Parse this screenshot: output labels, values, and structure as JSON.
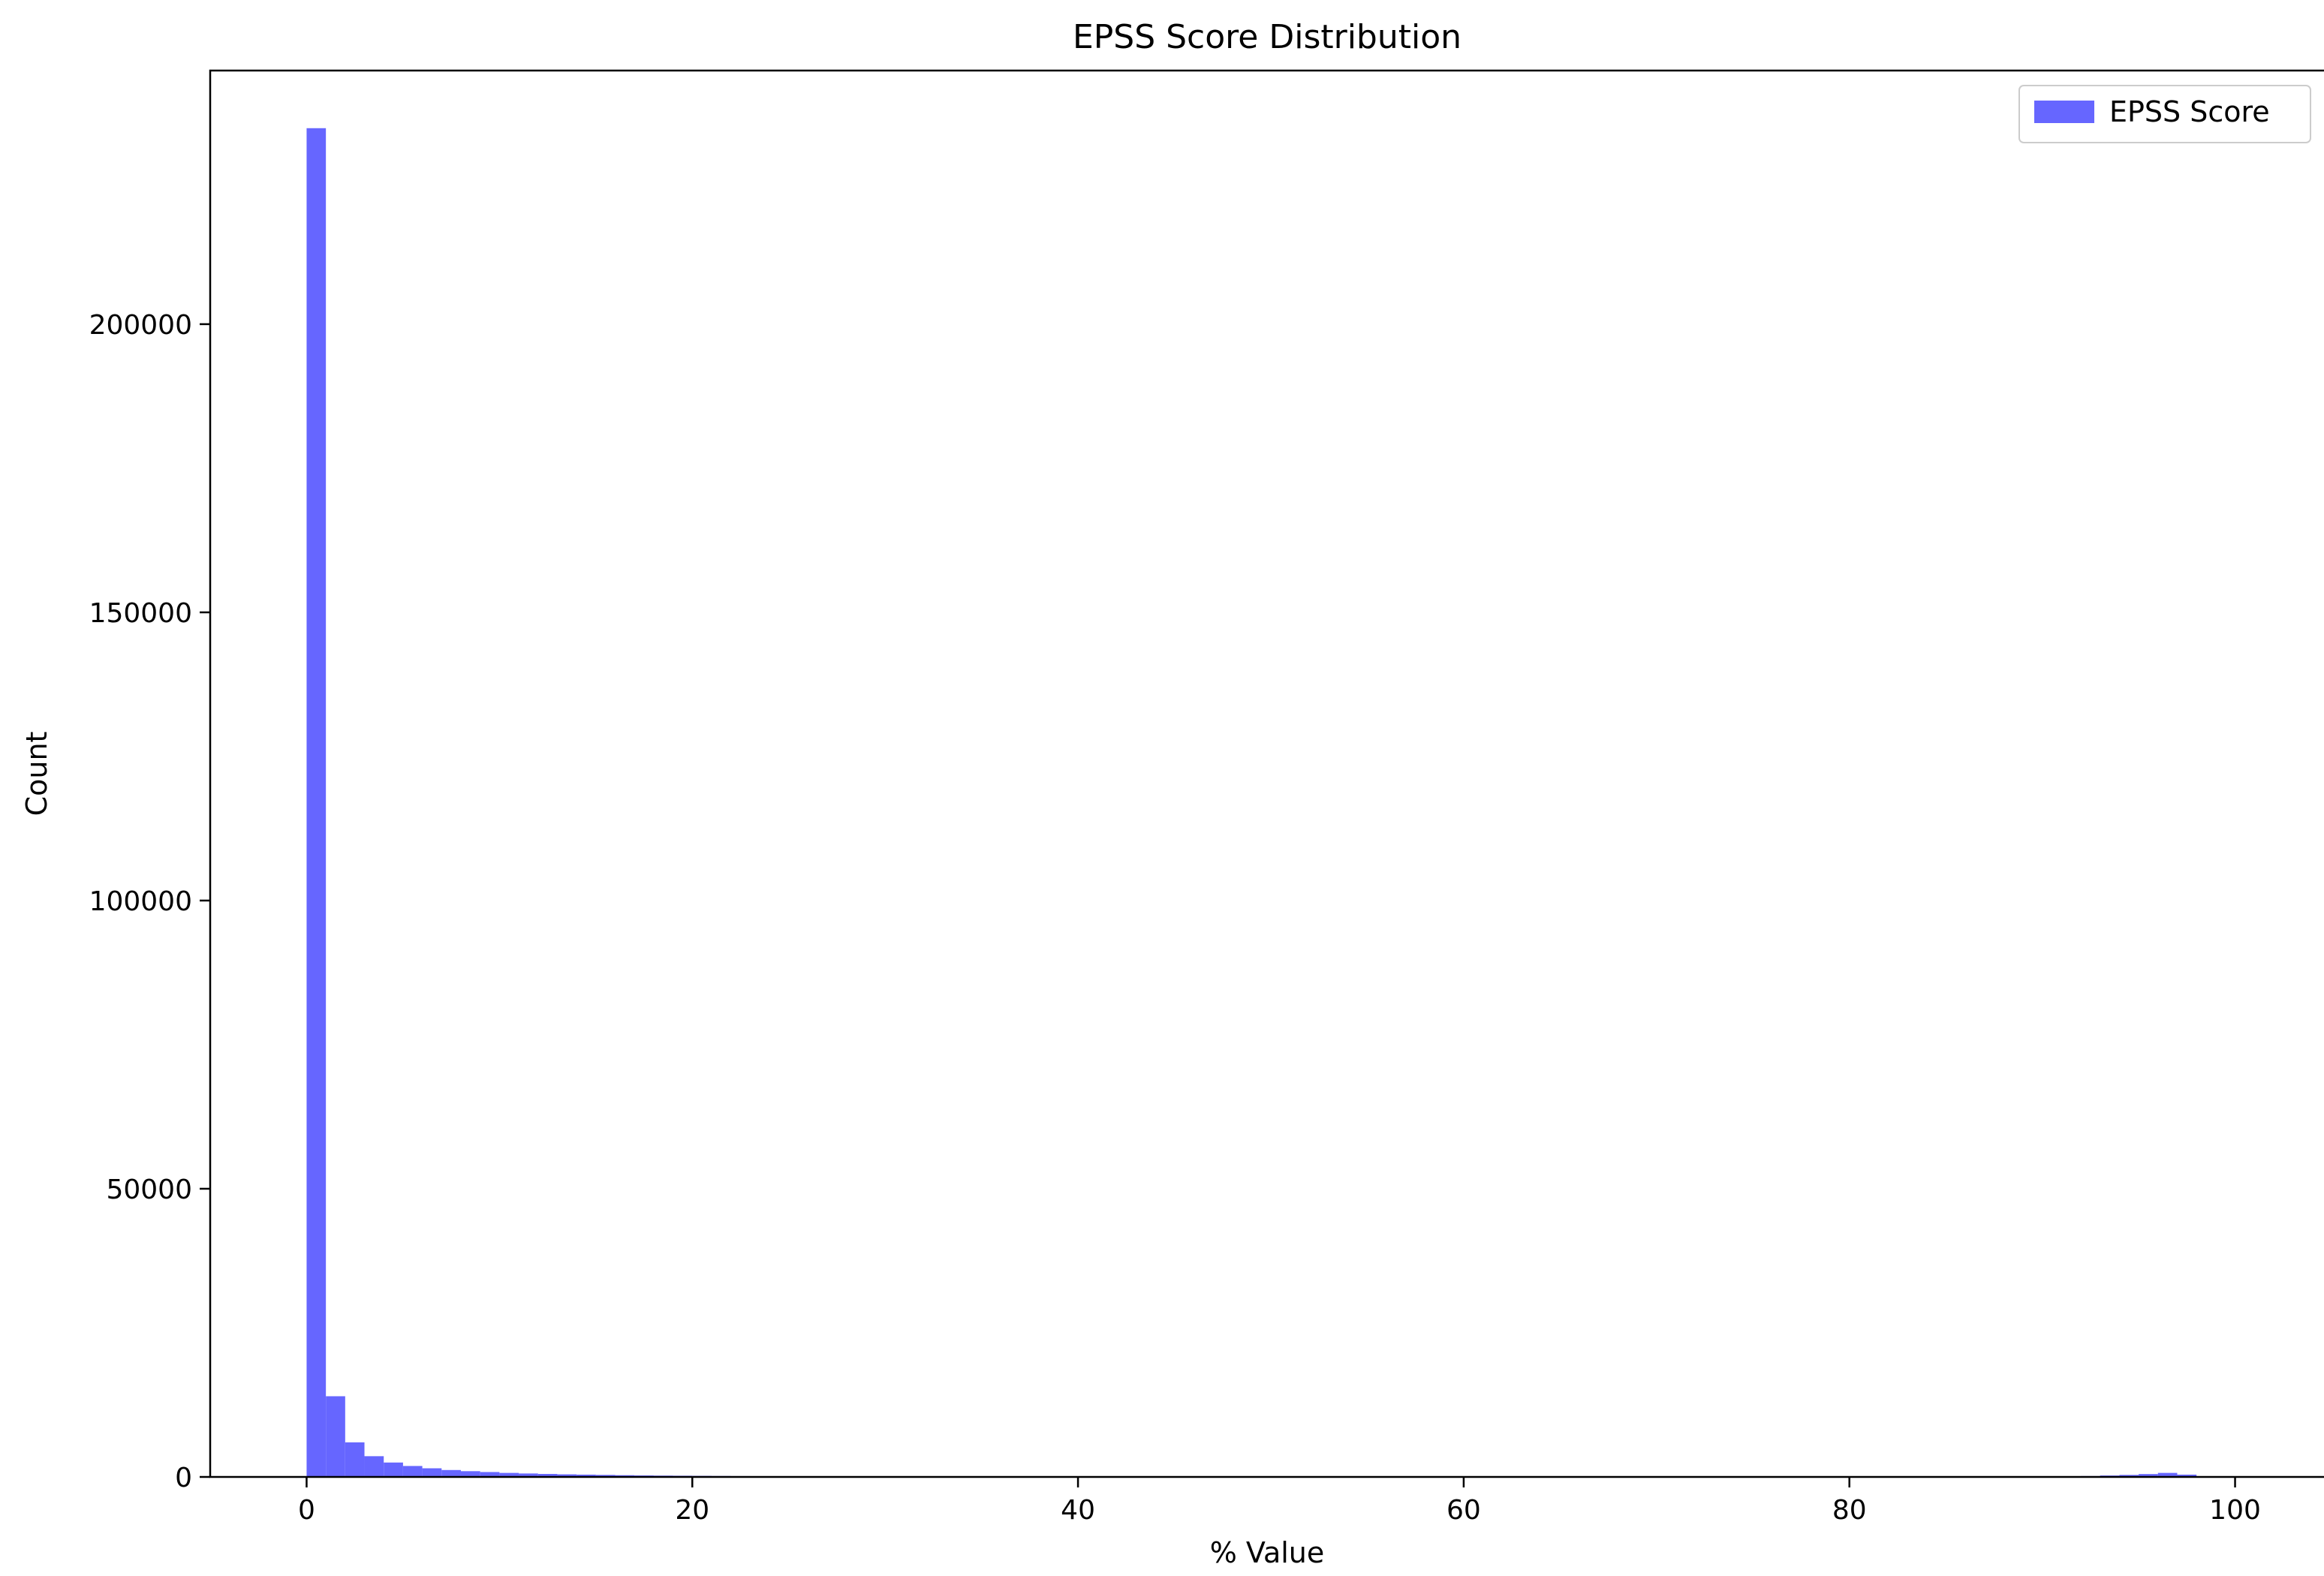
{
  "chart_data": {
    "type": "bar",
    "title": "EPSS Score Distribution",
    "xlabel": "% Value",
    "ylabel": "Count",
    "xlim": [
      -5,
      105
    ],
    "ylim": [
      0,
      244000
    ],
    "xticks": [
      0,
      20,
      40,
      60,
      80,
      100
    ],
    "yticks": [
      50000,
      100000,
      150000,
      200000
    ],
    "grid": false,
    "legend_position": "top-right",
    "series": [
      {
        "name": "EPSS Score",
        "color": "#6666ff",
        "bin_width": 1,
        "bins": [
          {
            "x": 0,
            "count": 234000
          },
          {
            "x": 1,
            "count": 14000
          },
          {
            "x": 2,
            "count": 6000
          },
          {
            "x": 3,
            "count": 3600
          },
          {
            "x": 4,
            "count": 2500
          },
          {
            "x": 5,
            "count": 1900
          },
          {
            "x": 6,
            "count": 1500
          },
          {
            "x": 7,
            "count": 1200
          },
          {
            "x": 8,
            "count": 1000
          },
          {
            "x": 9,
            "count": 850
          },
          {
            "x": 10,
            "count": 700
          },
          {
            "x": 11,
            "count": 600
          },
          {
            "x": 12,
            "count": 520
          },
          {
            "x": 13,
            "count": 450
          },
          {
            "x": 14,
            "count": 400
          },
          {
            "x": 15,
            "count": 350
          },
          {
            "x": 16,
            "count": 300
          },
          {
            "x": 17,
            "count": 260
          },
          {
            "x": 18,
            "count": 230
          },
          {
            "x": 19,
            "count": 210
          },
          {
            "x": 20,
            "count": 190
          },
          {
            "x": 21,
            "count": 160
          },
          {
            "x": 22,
            "count": 140
          },
          {
            "x": 23,
            "count": 120
          },
          {
            "x": 24,
            "count": 110
          },
          {
            "x": 25,
            "count": 100
          },
          {
            "x": 30,
            "count": 80
          },
          {
            "x": 40,
            "count": 60
          },
          {
            "x": 50,
            "count": 50
          },
          {
            "x": 60,
            "count": 40
          },
          {
            "x": 70,
            "count": 40
          },
          {
            "x": 80,
            "count": 50
          },
          {
            "x": 90,
            "count": 100
          },
          {
            "x": 92,
            "count": 150
          },
          {
            "x": 93,
            "count": 250
          },
          {
            "x": 94,
            "count": 350
          },
          {
            "x": 95,
            "count": 500
          },
          {
            "x": 96,
            "count": 700
          },
          {
            "x": 97,
            "count": 400
          }
        ]
      }
    ]
  }
}
